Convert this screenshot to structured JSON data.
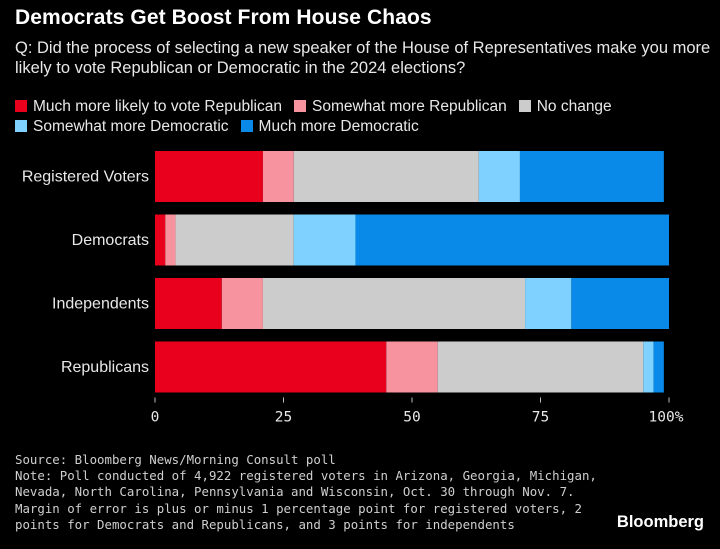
{
  "title": "Democrats Get Boost From House Chaos",
  "subtitle": "Q: Did the process of selecting a new speaker of the House of Representatives make you more likely to vote Republican or Democratic in the 2024 elections?",
  "footer": {
    "source": "Source: Bloomberg News/Morning Consult poll",
    "note_lines": [
      "Note: Poll conducted of 4,922 registered voters in Arizona, Georgia, Michigan,",
      "Nevada, North Carolina, Pennsylvania and Wisconsin, Oct. 30 through Nov. 7.",
      "Margin of error is plus or minus 1 percentage point for registered voters, 2",
      "points for Democrats and Republicans, and 3 points for independents"
    ]
  },
  "brand": "Bloomberg",
  "chart_data": {
    "type": "bar",
    "orientation": "horizontal",
    "stacked": true,
    "categories": [
      "Registered Voters",
      "Democrats",
      "Independents",
      "Republicans"
    ],
    "series": [
      {
        "name": "Much more likely to vote Republican",
        "color": "#e8001c",
        "values": [
          21,
          2,
          13,
          45
        ]
      },
      {
        "name": "Somewhat more Republican",
        "color": "#f6939e",
        "values": [
          6,
          2,
          8,
          10
        ]
      },
      {
        "name": "No change",
        "color": "#cccccc",
        "values": [
          36,
          23,
          51,
          40
        ]
      },
      {
        "name": "Somewhat more Democratic",
        "color": "#7fd2ff",
        "values": [
          8,
          12,
          9,
          2
        ]
      },
      {
        "name": "Much more Democratic",
        "color": "#0a8ae8",
        "values": [
          28,
          61,
          19,
          2
        ]
      }
    ],
    "xlim": [
      0,
      100
    ],
    "x_ticks": [
      "0",
      "25",
      "50",
      "75",
      "100%"
    ],
    "x_tick_values": [
      0,
      25,
      50,
      75,
      100
    ],
    "legend_position": "top",
    "grid": false
  }
}
